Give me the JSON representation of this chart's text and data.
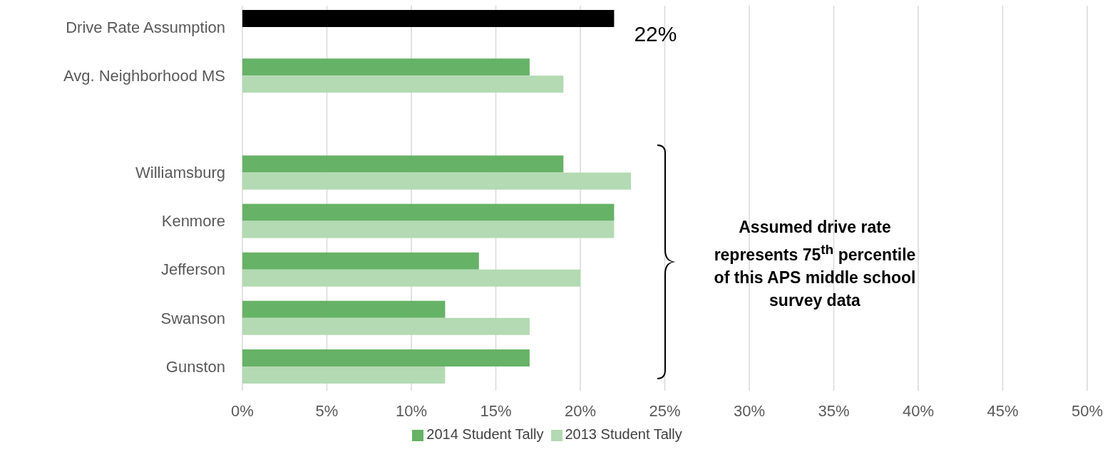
{
  "chart_data": {
    "type": "bar",
    "orientation": "horizontal",
    "categories": [
      "Drive Rate Assumption",
      "Avg. Neighborhood MS",
      null,
      "Williamsburg",
      "Kenmore",
      "Jefferson",
      "Swanson",
      "Gunston"
    ],
    "series": [
      {
        "name": "2014 Student Tally",
        "color": "#66b266",
        "colors": [
          "#000000",
          "#66b266",
          "#66b266",
          "#66b266",
          "#66b266",
          "#66b266",
          "#66b266",
          "#66b266"
        ],
        "values": [
          22,
          17,
          null,
          19,
          22,
          14,
          12,
          17
        ],
        "value_labels": [
          "22%",
          null,
          null,
          null,
          null,
          null,
          null,
          null
        ]
      },
      {
        "name": "2013 Student Tally",
        "color": "#b3dab3",
        "values": [
          null,
          19,
          null,
          23,
          22,
          20,
          17,
          12
        ]
      }
    ],
    "xlim": [
      0,
      50
    ],
    "xticks": [
      {
        "value": 0,
        "label": "0%"
      },
      {
        "value": 5,
        "label": "5%"
      },
      {
        "value": 10,
        "label": "10%"
      },
      {
        "value": 15,
        "label": "15%"
      },
      {
        "value": 20,
        "label": "20%"
      },
      {
        "value": 25,
        "label": "25%"
      },
      {
        "value": 30,
        "label": "30%"
      },
      {
        "value": 35,
        "label": "35%"
      },
      {
        "value": 40,
        "label": "40%"
      },
      {
        "value": 45,
        "label": "45%"
      },
      {
        "value": 50,
        "label": "50%"
      }
    ],
    "grid": "x",
    "legend": "bottom",
    "annotations": [
      "Assumed drive rate represents 75$^{th}$ percentile of this APS middle school survey data"
    ]
  }
}
